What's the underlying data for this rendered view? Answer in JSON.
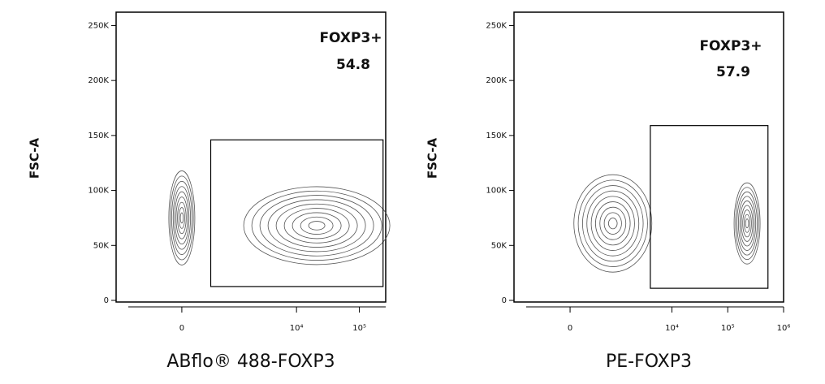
{
  "chart_data": [
    {
      "type": "contour",
      "x_label": "ABflo® 488-FOXP3",
      "y_label": "FSC-A",
      "xscale": "biexponential",
      "xlim": [
        -1650,
        262144
      ],
      "ylim": [
        0,
        262144
      ],
      "xticks": [
        0,
        {
          "value": 10000,
          "label": "10⁴"
        },
        {
          "value": 100000,
          "label": "10⁵"
        }
      ],
      "yticks": [
        0,
        {
          "value": 50000,
          "label": "50K"
        },
        {
          "value": 100000,
          "label": "100K"
        },
        {
          "value": 150000,
          "label": "150K"
        },
        {
          "value": 200000,
          "label": "200K"
        },
        {
          "value": 250000,
          "label": "250K"
        }
      ],
      "clusters": {
        "x": [
          0,
          21000
        ],
        "y": [
          75000,
          68000
        ]
      },
      "gate": {
        "name": "FOXP3+",
        "value": 54.8,
        "xlim": [
          380,
          238000
        ],
        "ylim": [
          12600,
          146000
        ]
      },
      "color": "#555555"
    },
    {
      "type": "contour",
      "x_label": "PE-FOXP3",
      "y_label": "FSC-A",
      "xscale": "biexponential",
      "xlim": [
        -1500,
        1000000
      ],
      "ylim": [
        0,
        262144
      ],
      "xticks": [
        0,
        {
          "value": 10000,
          "label": "10⁴"
        },
        {
          "value": 100000,
          "label": "10⁵"
        },
        {
          "value": 1000000,
          "label": "10⁶"
        }
      ],
      "yticks": [
        0,
        {
          "value": 50000,
          "label": "50K"
        },
        {
          "value": 100000,
          "label": "100K"
        },
        {
          "value": 150000,
          "label": "150K"
        },
        {
          "value": 200000,
          "label": "200K"
        },
        {
          "value": 250000,
          "label": "250K"
        }
      ],
      "clusters": {
        "x": [
          850,
          222000
        ],
        "y": [
          70000,
          70000
        ]
      },
      "gate": {
        "name": "FOXP3+",
        "value": 57.9,
        "xlim": [
          4100,
          525000
        ],
        "ylim": [
          11000,
          159000
        ]
      },
      "color": "#555555"
    }
  ]
}
